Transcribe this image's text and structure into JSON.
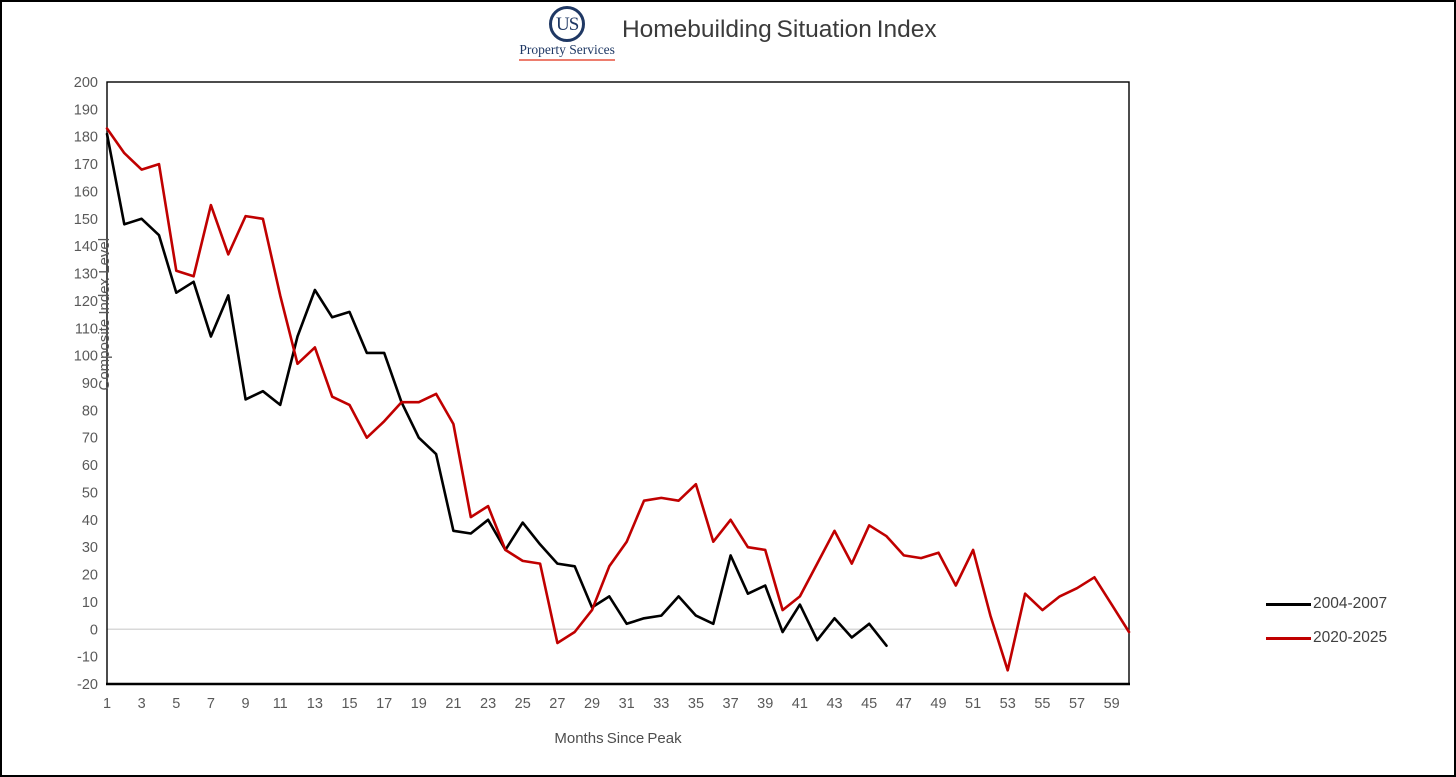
{
  "header": {
    "title": "Homebuilding Situation Index",
    "logo": {
      "circle_text": "US",
      "subtitle": "Property Services"
    }
  },
  "y_axis": {
    "title": "Composite Index Level",
    "ticks": [
      -20,
      -10,
      0,
      10,
      20,
      30,
      40,
      50,
      60,
      70,
      80,
      90,
      100,
      110,
      120,
      130,
      140,
      150,
      160,
      170,
      180,
      190,
      200
    ]
  },
  "x_axis": {
    "title": "Months Since Peak",
    "ticks": [
      1,
      3,
      5,
      7,
      9,
      11,
      13,
      15,
      17,
      19,
      21,
      23,
      25,
      27,
      29,
      31,
      33,
      35,
      37,
      39,
      41,
      43,
      45,
      47,
      49,
      51,
      53,
      55,
      57,
      59
    ]
  },
  "legend": {
    "items": [
      {
        "label": "2004-2007"
      },
      {
        "label": "2020-2025"
      }
    ]
  },
  "colors": {
    "series_black": "#000000",
    "series_red": "#C00000",
    "zero_gridline": "#D9D9D9",
    "plot_border": "#000000",
    "tick_label": "#595959",
    "title_text": "#3B3B3B",
    "logo_navy": "#1F3864",
    "logo_underline": "#ED7D6E"
  },
  "chart_data": {
    "type": "line",
    "title": "Homebuilding Situation Index",
    "xlabel": "Months Since Peak",
    "ylabel": "Composite Index Level",
    "x_start": 1,
    "x_count": 60,
    "ylim": [
      -20,
      200
    ],
    "y_tick_step": 10,
    "grid": "horizontal gridline at 0 only",
    "legend_position": "right",
    "series": [
      {
        "name": "2004-2007",
        "color": "#000000",
        "values": [
          181,
          148,
          150,
          144,
          123,
          127,
          107,
          122,
          84,
          87,
          82,
          107,
          124,
          114,
          116,
          101,
          101,
          83,
          70,
          64,
          36,
          35,
          40,
          29,
          39,
          31,
          24,
          23,
          8,
          12,
          2,
          4,
          5,
          12,
          5,
          2,
          27,
          13,
          16,
          -1,
          9,
          -4,
          4,
          -3,
          2,
          -6
        ]
      },
      {
        "name": "2020-2025",
        "color": "#C00000",
        "values": [
          183,
          174,
          168,
          170,
          131,
          129,
          155,
          137,
          151,
          150,
          122,
          97,
          103,
          85,
          82,
          70,
          76,
          83,
          83,
          86,
          75,
          41,
          45,
          29,
          25,
          24,
          -5,
          -1,
          7,
          23,
          32,
          47,
          48,
          47,
          53,
          32,
          40,
          30,
          29,
          7,
          12,
          24,
          36,
          24,
          38,
          34,
          27,
          26,
          28,
          16,
          29,
          5,
          -15,
          13,
          7,
          12,
          15,
          19,
          9,
          -1
        ]
      }
    ]
  }
}
